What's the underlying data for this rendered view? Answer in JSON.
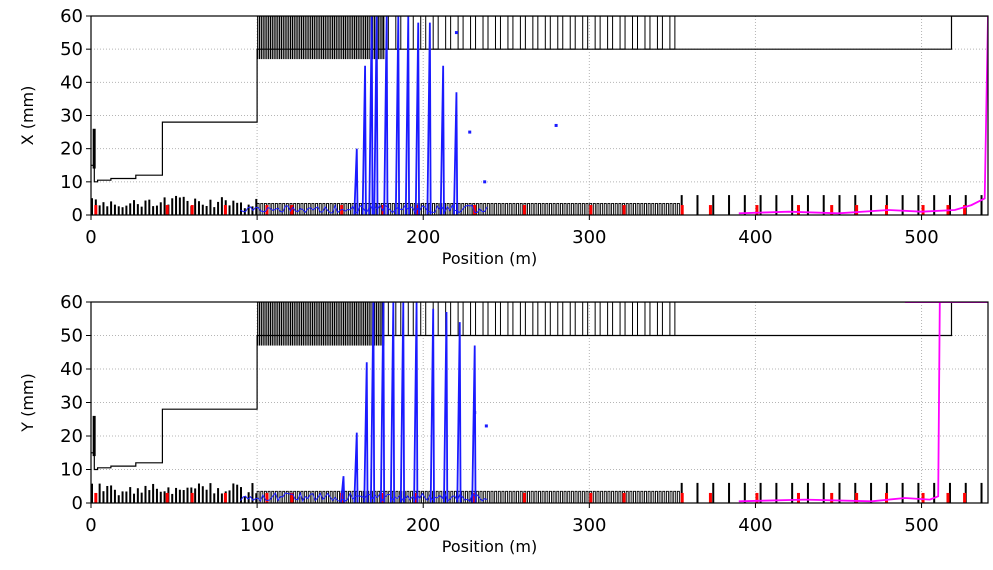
{
  "chart_data": [
    {
      "type": "line",
      "ylabel": "X (mm)",
      "xlabel": "Position (m)",
      "xlim": [
        0,
        540
      ],
      "ylim": [
        0,
        60
      ],
      "xticks": [
        0,
        100,
        200,
        300,
        400,
        500
      ],
      "yticks": [
        0,
        10,
        20,
        30,
        40,
        50,
        60
      ],
      "grid": true,
      "colors": {
        "aperture": "#000000",
        "losses_blue": "#1a1aff",
        "losses_magenta": "#ff00ff",
        "markers": "#ff0000"
      },
      "aperture": {
        "x": [
          0,
          2,
          2,
          4,
          4,
          12,
          12,
          27,
          27,
          43,
          43,
          100,
          100,
          355,
          355,
          518,
          518,
          540
        ],
        "y": [
          15,
          15,
          10,
          10,
          10.5,
          10.5,
          11,
          11,
          12,
          12,
          28,
          28,
          50,
          50,
          50,
          50,
          60,
          60
        ]
      },
      "blue_traces": [
        {
          "z": 160,
          "ymax": 20
        },
        {
          "z": 165,
          "ymax": 45
        },
        {
          "z": 169,
          "ymax": 60
        },
        {
          "z": 172,
          "ymax": 60
        },
        {
          "z": 178,
          "ymax": 60
        },
        {
          "z": 185,
          "ymax": 60
        },
        {
          "z": 191,
          "ymax": 60
        },
        {
          "z": 197,
          "ymax": 58
        },
        {
          "z": 204,
          "ymax": 58
        },
        {
          "z": 212,
          "ymax": 45
        },
        {
          "z": 220,
          "ymax": 37
        }
      ],
      "blue_points": [
        {
          "x": 228,
          "y": 25
        },
        {
          "x": 237,
          "y": 10
        },
        {
          "x": 280,
          "y": 27
        },
        {
          "x": 220,
          "y": 55
        }
      ],
      "magenta_series": {
        "x": [
          390,
          420,
          450,
          480,
          500,
          520,
          530,
          538,
          540
        ],
        "y": [
          0.5,
          1.0,
          0.5,
          1.5,
          1.0,
          1.5,
          3.0,
          5.0,
          60
        ]
      }
    },
    {
      "type": "line",
      "ylabel": "Y (mm)",
      "xlabel": "Position (m)",
      "xlim": [
        0,
        540
      ],
      "ylim": [
        0,
        60
      ],
      "xticks": [
        0,
        100,
        200,
        300,
        400,
        500
      ],
      "yticks": [
        0,
        10,
        20,
        30,
        40,
        50,
        60
      ],
      "grid": true,
      "colors": {
        "aperture": "#000000",
        "losses_blue": "#1a1aff",
        "losses_magenta": "#ff00ff",
        "markers": "#ff0000"
      },
      "aperture": {
        "x": [
          0,
          2,
          2,
          4,
          4,
          12,
          12,
          27,
          27,
          43,
          43,
          100,
          100,
          355,
          355,
          518,
          518,
          540
        ],
        "y": [
          15,
          15,
          10,
          10,
          10.5,
          10.5,
          11,
          11,
          12,
          12,
          28,
          28,
          50,
          50,
          50,
          50,
          60,
          60
        ]
      },
      "blue_traces": [
        {
          "z": 152,
          "ymax": 8
        },
        {
          "z": 160,
          "ymax": 21
        },
        {
          "z": 166,
          "ymax": 42
        },
        {
          "z": 170,
          "ymax": 60
        },
        {
          "z": 176,
          "ymax": 60
        },
        {
          "z": 182,
          "ymax": 60
        },
        {
          "z": 188,
          "ymax": 60
        },
        {
          "z": 196,
          "ymax": 60
        },
        {
          "z": 206,
          "ymax": 58
        },
        {
          "z": 214,
          "ymax": 57
        },
        {
          "z": 222,
          "ymax": 54
        },
        {
          "z": 231,
          "ymax": 47
        }
      ],
      "blue_points": [
        {
          "x": 238,
          "y": 23
        },
        {
          "x": 231,
          "y": 27
        }
      ],
      "magenta_series": {
        "x": [
          390,
          430,
          470,
          490,
          505,
          510,
          511,
          512,
          540
        ],
        "y": [
          0.5,
          1.0,
          0.5,
          1.5,
          1.0,
          2.0,
          60,
          60,
          60
        ]
      }
    }
  ]
}
